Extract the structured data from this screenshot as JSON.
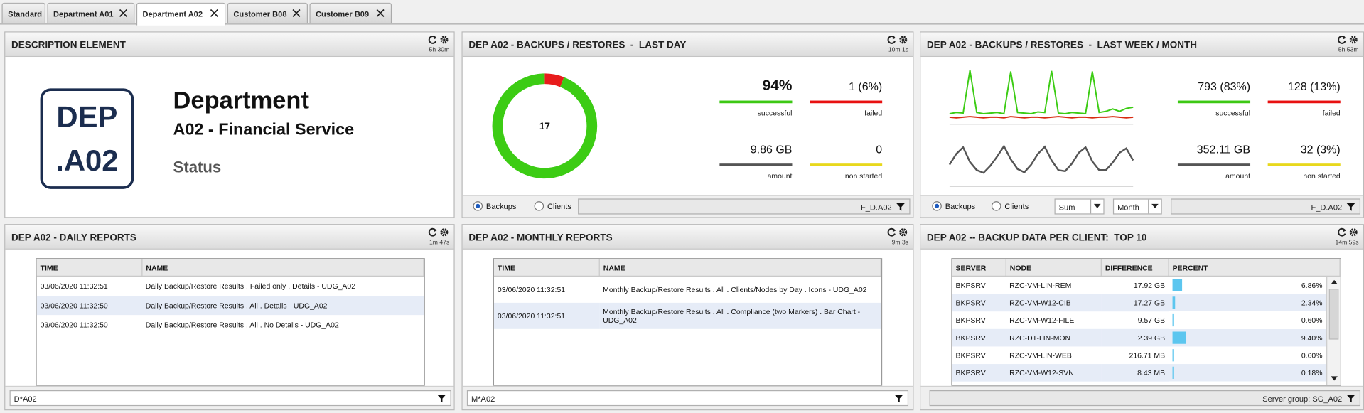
{
  "tabs": [
    "Standard",
    "Department A01",
    "Department A02",
    "Customer B08",
    "Customer B09"
  ],
  "active_tab": 2,
  "panels": [
    {
      "title": "DESCRIPTION ELEMENT",
      "time": "5h 30m",
      "logo": [
        "DEP",
        ".A02"
      ],
      "heading": "Department",
      "subheading": "A02 - Financial Service",
      "status": "Status"
    },
    {
      "title": "DEP A02 - BACKUPS / RESTORES  -  LAST DAY",
      "time": "10m 1s",
      "stats": [
        {
          "value": "94%",
          "label": "successful",
          "color": "#3cc814"
        },
        {
          "value": "1 (6%)",
          "label": "failed",
          "color": "#e81010"
        },
        {
          "value": "9.86 GB",
          "label": "amount",
          "color": "#555555"
        },
        {
          "value": "0",
          "label": "non started",
          "color": "#e8d81c"
        }
      ],
      "footer": {
        "radios": [
          "Backups",
          "Clients"
        ],
        "filter": "F_D.A02"
      }
    },
    {
      "title": "DEP A02 - BACKUPS / RESTORES  -  LAST WEEK / MONTH",
      "time": "5h 53m",
      "stats": [
        {
          "value": "793 (83%)",
          "label": "successful",
          "color": "#3cc814"
        },
        {
          "value": "128 (13%)",
          "label": "failed",
          "color": "#e81010"
        },
        {
          "value": "352.11 GB",
          "label": "amount",
          "color": "#555555"
        },
        {
          "value": "32 (3%)",
          "label": "non started",
          "color": "#e8d81c"
        }
      ],
      "footer": {
        "radios": [
          "Backups",
          "Clients"
        ],
        "selects": [
          "Sum",
          "Month"
        ],
        "filter": "F_D.A02"
      }
    },
    {
      "title": "DEP A02 - DAILY REPORTS",
      "time": "1m 47s",
      "table": {
        "columns": [
          "TIME",
          "NAME"
        ],
        "rows": [
          [
            "03/06/2020 11:32:51",
            "Daily Backup/Restore Results . Failed only . Details - UDG_A02"
          ],
          [
            "03/06/2020 11:32:50",
            "Daily Backup/Restore Results . All . Details - UDG_A02"
          ],
          [
            "03/06/2020 11:32:50",
            "Daily Backup/Restore Results . All . No Details - UDG_A02"
          ]
        ]
      },
      "footer": {
        "filter": "D*A02"
      }
    },
    {
      "title": "DEP A02 - MONTHLY REPORTS",
      "time": "9m 3s",
      "table": {
        "columns": [
          "TIME",
          "NAME"
        ],
        "rows": [
          [
            "03/06/2020 11:32:51",
            "Monthly Backup/Restore Results . All . Clients/Nodes by Day . Icons - UDG_A02"
          ],
          [
            "03/06/2020 11:32:51",
            "Monthly Backup/Restore Results . All . Compliance (two Markers) . Bar Chart - UDG_A02"
          ]
        ]
      },
      "footer": {
        "filter": "M*A02"
      }
    },
    {
      "title": "DEP A02 -- BACKUP DATA PER CLIENT:  TOP 10",
      "time": "14m 59s",
      "table": {
        "columns": [
          "SERVER",
          "NODE",
          "DIFFERENCE",
          "PERCENT"
        ],
        "rows": [
          {
            "cells": [
              "BKPSRV",
              "RZC-VM-LIN-REM",
              "17.92 GB"
            ],
            "percent": 6.86,
            "percent_label": "6.86%"
          },
          {
            "cells": [
              "BKPSRV",
              "RZC-VM-W12-CIB",
              "17.27 GB"
            ],
            "percent": 2.34,
            "percent_label": "2.34%"
          },
          {
            "cells": [
              "BKPSRV",
              "RZC-VM-W12-FILE",
              "9.57 GB"
            ],
            "percent": 0.6,
            "percent_label": "0.60%"
          },
          {
            "cells": [
              "BKPSRV",
              "RZC-DT-LIN-MON",
              "2.39 GB"
            ],
            "percent": 9.4,
            "percent_label": "9.40%"
          },
          {
            "cells": [
              "BKPSRV",
              "RZC-VM-LIN-WEB",
              "216.71 MB"
            ],
            "percent": 0.6,
            "percent_label": "0.60%"
          },
          {
            "cells": [
              "BKPSRV",
              "RZC-VM-W12-SVN",
              "8.43 MB"
            ],
            "percent": 0.18,
            "percent_label": "0.18%"
          }
        ]
      },
      "footer": {
        "filter": "Server group: SG_A02"
      }
    }
  ],
  "chart_data": [
    {
      "type": "donut",
      "center_label": 17,
      "values": [
        6,
        94
      ],
      "colors": [
        "#e81c1c",
        "#3ccc14"
      ]
    },
    {
      "type": "line",
      "ylim": [
        0,
        100
      ],
      "series": [
        {
          "color": "#3ccc14",
          "values": [
            18,
            20,
            19,
            92,
            20,
            18,
            19,
            20,
            18,
            90,
            20,
            19,
            18,
            21,
            20,
            91,
            19,
            18,
            20,
            19,
            18,
            90,
            20,
            22,
            26,
            22,
            27,
            29
          ]
        },
        {
          "color": "#d82a10",
          "values": [
            12,
            11,
            12,
            13,
            12,
            11,
            12,
            12,
            11,
            13,
            12,
            11,
            12,
            12,
            11,
            12,
            13,
            12,
            11,
            12,
            12,
            11,
            12,
            12,
            13,
            12,
            11,
            12
          ]
        }
      ]
    },
    {
      "type": "line",
      "ylim": [
        0,
        100
      ],
      "series": [
        {
          "color": "#555555",
          "values": [
            40,
            60,
            72,
            45,
            30,
            25,
            38,
            55,
            74,
            50,
            32,
            26,
            40,
            60,
            73,
            48,
            30,
            28,
            42,
            62,
            72,
            46,
            30,
            30,
            44,
            62,
            70,
            48
          ]
        }
      ]
    }
  ]
}
